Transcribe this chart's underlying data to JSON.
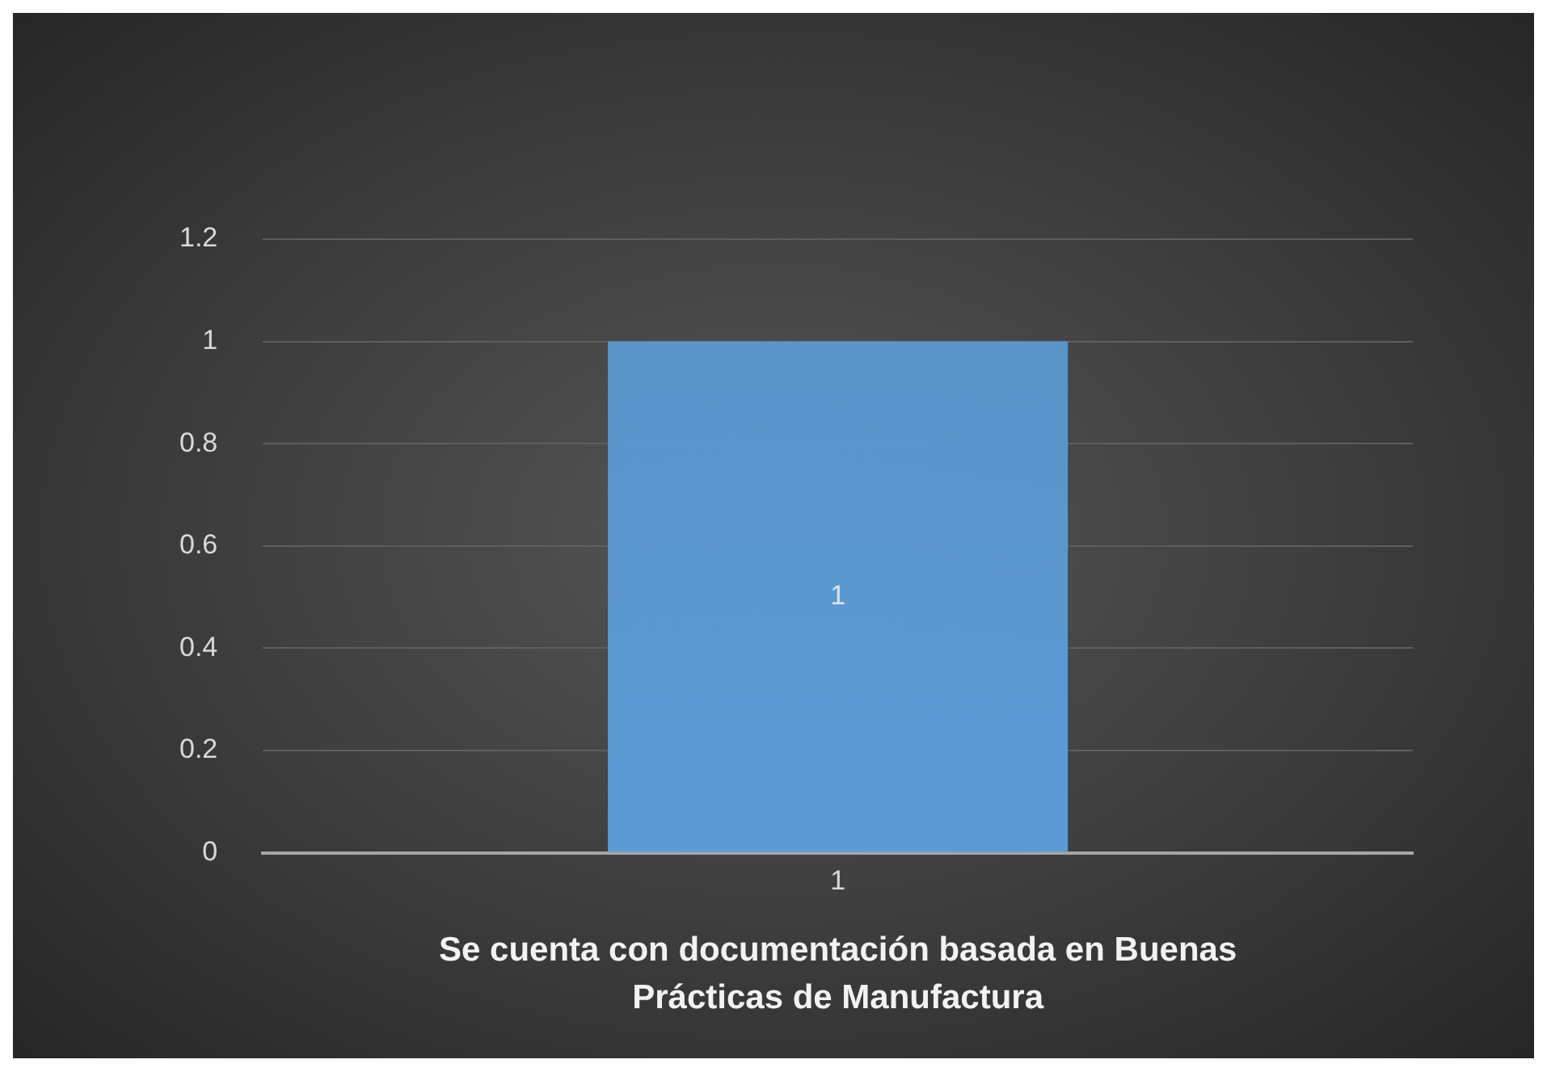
{
  "chart_data": {
    "type": "bar",
    "categories": [
      "1"
    ],
    "values": [
      1
    ],
    "color": "#5b9bd5",
    "xlabel": "Se cuenta con documentación basada en Buenas\nPrácticas de Manufactura",
    "ylim": [
      0,
      1.2
    ],
    "yticks": [
      0,
      0.2,
      0.4,
      0.6,
      0.8,
      1,
      1.2
    ],
    "grid": "y",
    "data_labels": true,
    "legend": false
  }
}
